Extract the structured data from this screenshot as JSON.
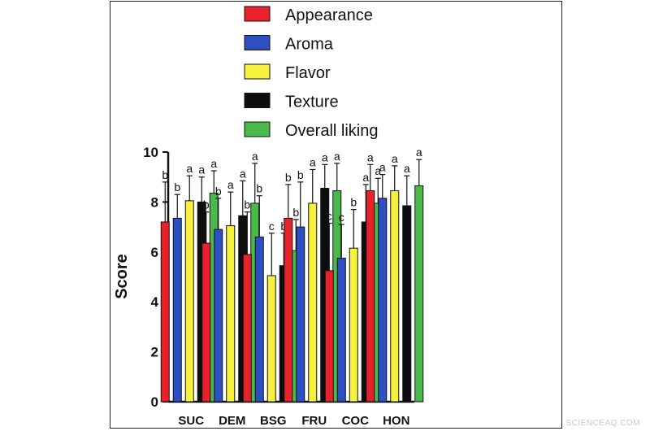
{
  "chart_data": {
    "type": "bar",
    "title": "",
    "xlabel": "",
    "ylabel": "Score",
    "ylim": [
      0,
      10
    ],
    "yticks": [
      0,
      2,
      4,
      6,
      8,
      10
    ],
    "categories": [
      "SUC",
      "DEM",
      "BSG",
      "FRU",
      "COC",
      "HON"
    ],
    "legend_position": "top-center",
    "series": [
      {
        "name": "Appearance",
        "color": "#e8212b",
        "values": [
          7.2,
          6.35,
          5.9,
          7.35,
          5.25,
          8.45
        ],
        "errors": [
          1.6,
          1.25,
          1.7,
          1.35,
          1.9,
          1.05
        ],
        "letters": [
          "b",
          "b",
          "b",
          "b",
          "c",
          "a"
        ]
      },
      {
        "name": "Aroma",
        "color": "#2d4fc4",
        "values": [
          7.35,
          6.9,
          6.6,
          7.0,
          5.75,
          8.15
        ],
        "errors": [
          0.95,
          1.25,
          1.65,
          1.8,
          1.35,
          0.95
        ],
        "letters": [
          "b",
          "b",
          "b",
          "b",
          "c",
          "a"
        ]
      },
      {
        "name": "Flavor",
        "color": "#f5f13c",
        "values": [
          8.05,
          7.05,
          5.05,
          7.95,
          6.15,
          8.45
        ],
        "errors": [
          1.0,
          1.35,
          1.7,
          1.35,
          1.55,
          1.0
        ],
        "letters": [
          "a",
          "a",
          "c",
          "a",
          "b",
          "a"
        ]
      },
      {
        "name": "Texture",
        "color": "#0d0d0d",
        "values": [
          8.0,
          7.45,
          5.45,
          8.55,
          7.2,
          7.85
        ],
        "errors": [
          1.0,
          1.4,
          1.3,
          0.95,
          1.5,
          1.2
        ],
        "letters": [
          "a",
          "a",
          "b",
          "a",
          "a",
          "a"
        ]
      },
      {
        "name": "Overall liking",
        "color": "#4bb84b",
        "values": [
          8.35,
          7.95,
          6.05,
          8.45,
          7.95,
          8.65
        ],
        "errors": [
          0.9,
          1.6,
          1.25,
          1.1,
          1.0,
          1.05
        ],
        "letters": [
          "a",
          "a",
          "b",
          "a",
          "a",
          "a"
        ]
      }
    ]
  },
  "watermark": "SCIENCEAQ.COM"
}
